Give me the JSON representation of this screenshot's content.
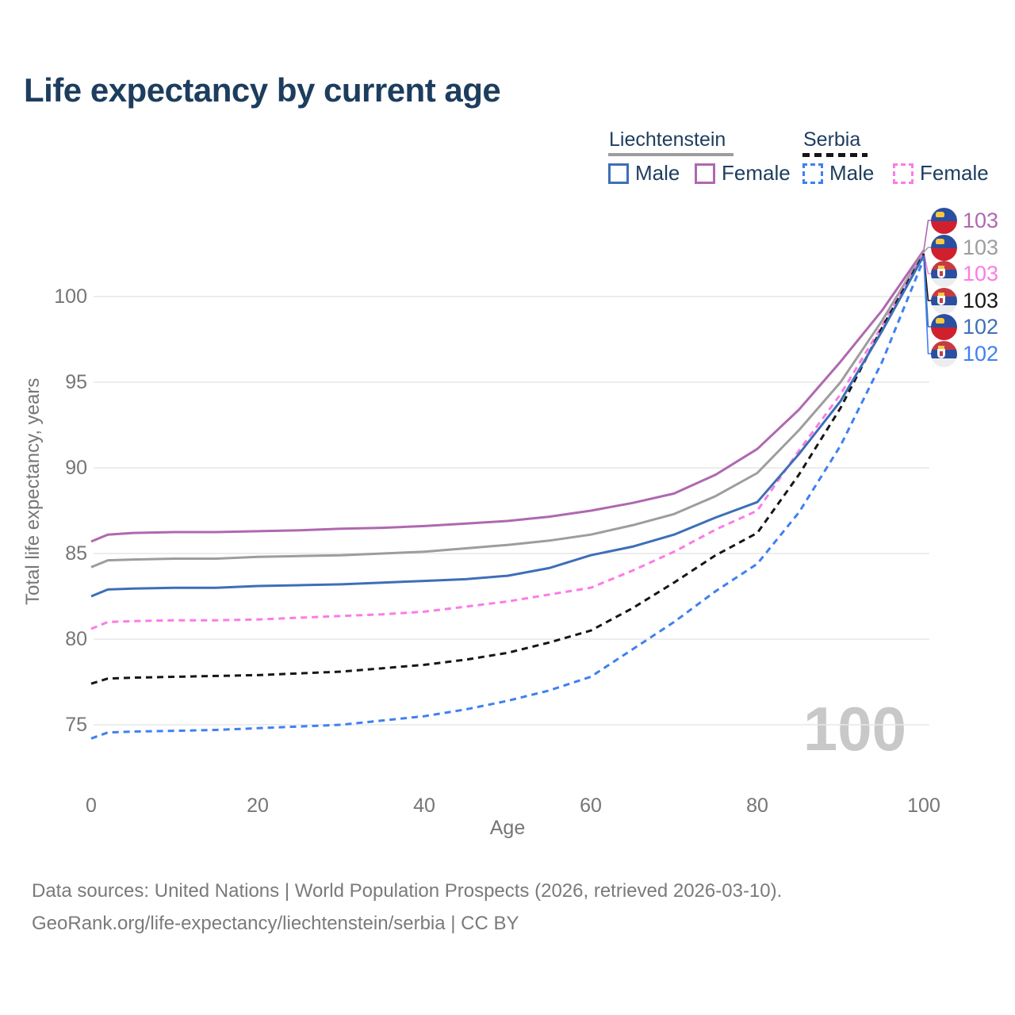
{
  "title": "Life expectancy by current age",
  "legend": {
    "groups": [
      {
        "country": "Liechtenstein",
        "line_style": "solid",
        "underline_color": "#9d9d9d",
        "items": [
          {
            "label": "Male",
            "color": "#3d6fb8"
          },
          {
            "label": "Female",
            "color": "#af68b0"
          }
        ]
      },
      {
        "country": "Serbia",
        "line_style": "dashed",
        "underline_color": "#161616",
        "items": [
          {
            "label": "Male",
            "color": "#3f80f2"
          },
          {
            "label": "Female",
            "color": "#fb7ce4"
          }
        ]
      }
    ]
  },
  "axes": {
    "x_label": "Age",
    "y_label": "Total life expectancy, years",
    "x_ticks": [
      "0",
      "20",
      "40",
      "60",
      "80",
      "100"
    ],
    "y_ticks": [
      "75",
      "80",
      "85",
      "90",
      "95",
      "100"
    ],
    "x_range": [
      0,
      100
    ],
    "grid": "horizontal-only",
    "gridline_color": "#e7e7e7"
  },
  "age_watermark": "100",
  "chart_data": {
    "type": "line",
    "title": "Life expectancy by current age",
    "xlabel": "Age",
    "ylabel": "Total life expectancy, years",
    "x": [
      0,
      2,
      5,
      10,
      15,
      20,
      25,
      30,
      35,
      40,
      45,
      50,
      55,
      60,
      65,
      70,
      75,
      80,
      85,
      90,
      95,
      100
    ],
    "series": [
      {
        "name": "Liechtenstein Female",
        "country": "Liechtenstein",
        "sex": "Female",
        "color": "#af68b0",
        "dashed": false,
        "end_label": "103",
        "flag": "liechtenstein",
        "values": [
          85.7,
          86.1,
          86.2,
          86.25,
          86.25,
          86.3,
          86.35,
          86.45,
          86.5,
          86.6,
          86.75,
          86.9,
          87.15,
          87.5,
          87.95,
          88.5,
          89.6,
          91.1,
          93.4,
          96.2,
          99.2,
          102.7
        ]
      },
      {
        "name": "Liechtenstein Both sexes",
        "country": "Liechtenstein",
        "sex": "Both",
        "color": "#9d9d9d",
        "dashed": false,
        "end_label": "103",
        "flag": "liechtenstein",
        "values": [
          84.2,
          84.6,
          84.65,
          84.7,
          84.7,
          84.8,
          84.85,
          84.9,
          85.0,
          85.1,
          85.3,
          85.5,
          85.75,
          86.1,
          86.65,
          87.3,
          88.35,
          89.7,
          92.2,
          95.0,
          98.6,
          102.6
        ]
      },
      {
        "name": "Serbia Female",
        "country": "Serbia",
        "sex": "Female",
        "color": "#fb7ce4",
        "dashed": true,
        "end_label": "103",
        "flag": "serbia",
        "values": [
          80.6,
          81.0,
          81.05,
          81.1,
          81.1,
          81.15,
          81.25,
          81.35,
          81.45,
          81.6,
          81.9,
          82.2,
          82.6,
          83.0,
          84.0,
          85.1,
          86.4,
          87.5,
          91.0,
          94.3,
          98.3,
          102.55
        ]
      },
      {
        "name": "Serbia Both sexes",
        "country": "Serbia",
        "sex": "Both",
        "color": "#161616",
        "dashed": true,
        "end_label": "103",
        "flag": "serbia",
        "values": [
          77.4,
          77.7,
          77.75,
          77.8,
          77.85,
          77.9,
          78.0,
          78.1,
          78.3,
          78.5,
          78.8,
          79.2,
          79.8,
          80.5,
          81.8,
          83.3,
          84.9,
          86.2,
          89.6,
          93.5,
          98.2,
          102.5
        ]
      },
      {
        "name": "Liechtenstein Male",
        "country": "Liechtenstein",
        "sex": "Male",
        "color": "#3d6fb8",
        "dashed": false,
        "end_label": "102",
        "flag": "liechtenstein",
        "values": [
          82.5,
          82.9,
          82.95,
          83.0,
          83.0,
          83.1,
          83.15,
          83.2,
          83.3,
          83.4,
          83.5,
          83.7,
          84.15,
          84.9,
          85.4,
          86.1,
          87.1,
          88.0,
          90.8,
          93.9,
          98.0,
          102.4
        ]
      },
      {
        "name": "Serbia Male",
        "country": "Serbia",
        "sex": "Male",
        "color": "#3f80f2",
        "dashed": true,
        "end_label": "102",
        "flag": "serbia",
        "values": [
          74.2,
          74.55,
          74.6,
          74.65,
          74.7,
          74.8,
          74.9,
          75.0,
          75.25,
          75.5,
          75.9,
          76.4,
          77.0,
          77.8,
          79.4,
          81.0,
          82.8,
          84.4,
          87.4,
          91.3,
          96.2,
          102.2
        ]
      }
    ]
  },
  "footer": {
    "line1": "Data sources: United Nations | World Population Prospects (2026, retrieved 2026-03-10).",
    "line2": "GeoRank.org/life-expectancy/liechtenstein/serbia | CC BY"
  }
}
